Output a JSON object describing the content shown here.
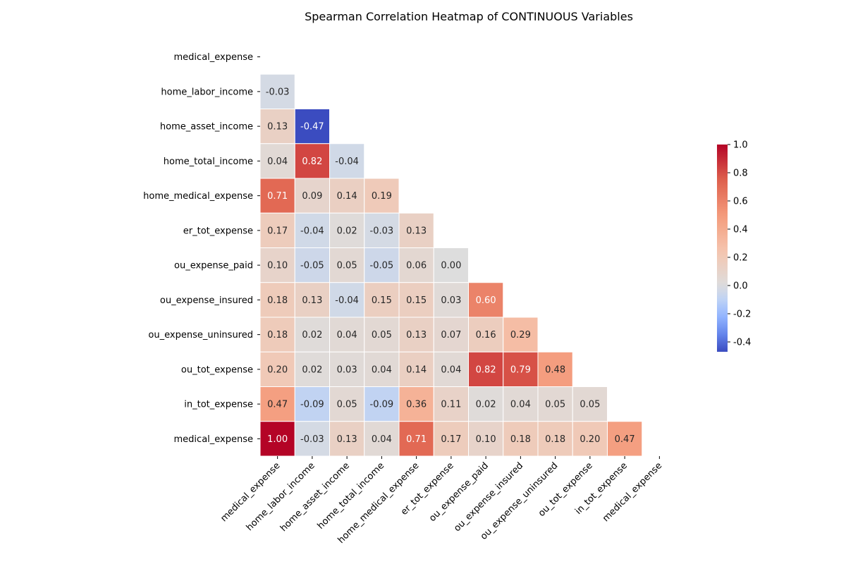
{
  "chart_data": {
    "type": "heatmap",
    "title": "Spearman Correlation Heatmap of CONTINUOUS Variables",
    "mask": "upper-triangle-including-diagonal",
    "row_labels": [
      "medical_expense",
      "home_labor_income",
      "home_asset_income",
      "home_total_income",
      "home_medical_expense",
      "er_tot_expense",
      "ou_expense_paid",
      "ou_expense_insured",
      "ou_expense_uninsured",
      "ou_tot_expense",
      "in_tot_expense",
      "medical_expense"
    ],
    "col_labels": [
      "medical_expense",
      "home_labor_income",
      "home_asset_income",
      "home_total_income",
      "home_medical_expense",
      "er_tot_expense",
      "ou_expense_paid",
      "ou_expense_insured",
      "ou_expense_uninsured",
      "ou_tot_expense",
      "in_tot_expense",
      "medical_expense"
    ],
    "values": [
      [],
      [
        -0.03
      ],
      [
        0.13,
        -0.47
      ],
      [
        0.04,
        0.82,
        -0.04
      ],
      [
        0.71,
        0.09,
        0.14,
        0.19
      ],
      [
        0.17,
        -0.04,
        0.02,
        -0.03,
        0.13
      ],
      [
        0.1,
        -0.05,
        0.05,
        -0.05,
        0.06,
        0.0
      ],
      [
        0.18,
        0.13,
        -0.04,
        0.15,
        0.15,
        0.03,
        0.6
      ],
      [
        0.18,
        0.02,
        0.04,
        0.05,
        0.13,
        0.07,
        0.16,
        0.29
      ],
      [
        0.2,
        0.02,
        0.03,
        0.04,
        0.14,
        0.04,
        0.82,
        0.79,
        0.48
      ],
      [
        0.47,
        -0.09,
        0.05,
        -0.09,
        0.36,
        0.11,
        0.02,
        0.04,
        0.05,
        0.05
      ],
      [
        1.0,
        -0.03,
        0.13,
        0.04,
        0.71,
        0.17,
        0.1,
        0.18,
        0.18,
        0.2,
        0.47
      ]
    ],
    "colormap": "coolwarm",
    "vmin": -0.47,
    "vmax": 1.0,
    "value_format": "0.00",
    "colorbar": {
      "ticks": [
        "1.0",
        "0.8",
        "0.6",
        "0.4",
        "0.2",
        "0.0",
        "-0.2",
        "-0.4"
      ],
      "tick_values": [
        1.0,
        0.8,
        0.6,
        0.4,
        0.2,
        0.0,
        -0.2,
        -0.4
      ],
      "placement": "right"
    },
    "cell_border_color": "#ffffff"
  }
}
